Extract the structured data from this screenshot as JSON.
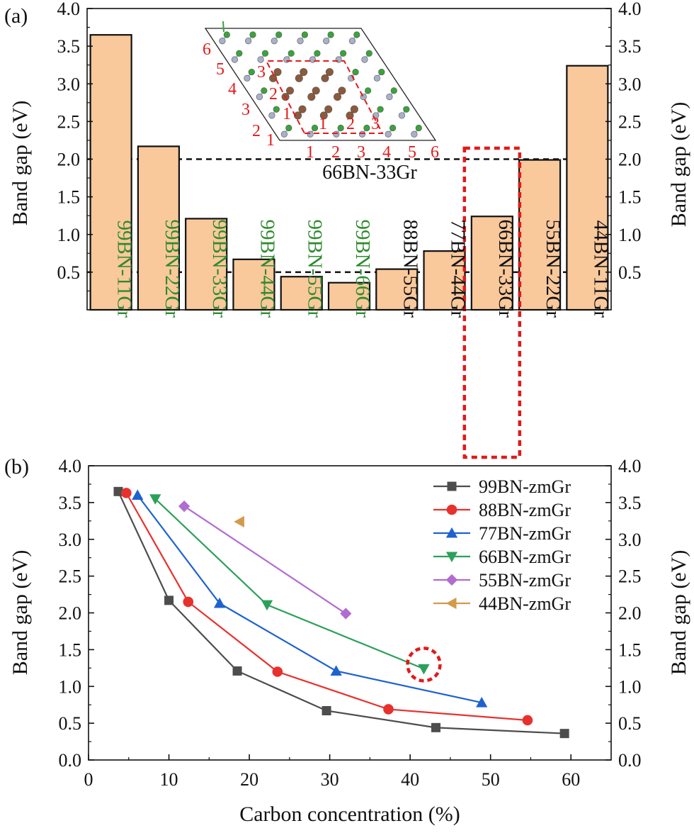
{
  "chart_data": [
    {
      "panel_label": "(a)",
      "type": "bar",
      "ylabel_left": "Band gap (eV)",
      "ylabel_right": "Band gap (eV)",
      "ylim": [
        0,
        4.0
      ],
      "yticks": [
        "0.5",
        "1.0",
        "1.5",
        "2.0",
        "2.5",
        "3.0",
        "3.5",
        "4.0"
      ],
      "categories": [
        "99BN-11Gr",
        "99BN-22Gr",
        "99BN-33Gr",
        "99BN-44Gr",
        "99BN-55Gr",
        "99BN-66Gr",
        "88BN-55Gr",
        "77BN-44Gr",
        "66BN-33Gr",
        "55BN-22Gr",
        "44BN-11Gr"
      ],
      "values": [
        3.65,
        2.17,
        1.21,
        0.67,
        0.44,
        0.36,
        0.54,
        0.78,
        1.24,
        1.99,
        3.24
      ],
      "category_colors": [
        "#2e8b2e",
        "#2e8b2e",
        "#2e8b2e",
        "#2e8b2e",
        "#2e8b2e",
        "#2e8b2e",
        "#111111",
        "#111111",
        "#111111",
        "#111111",
        "#111111"
      ],
      "bar_color": "#f9c89b",
      "reference_lines": [
        2.0,
        0.5
      ],
      "highlight_category": "66BN-33Gr",
      "highlight_color": "#e01b1b",
      "grid": false,
      "inset": {
        "label": "66BN-33Gr",
        "bottom_edge_labels": [
          "1",
          "2",
          "3",
          "4",
          "5",
          "6"
        ],
        "left_edge_labels": [
          "1",
          "2",
          "3",
          "4",
          "5",
          "6"
        ],
        "inner_bottom_labels": [
          "1",
          "2",
          "3"
        ],
        "inner_left_labels": [
          "1",
          "2",
          "3"
        ],
        "colors": {
          "carbon": "#8b5a3c",
          "boron": "#3ba33b",
          "nitrogen": "#a9b0c9",
          "labels": "#e01b1b"
        }
      }
    },
    {
      "panel_label": "(b)",
      "type": "line",
      "xlabel": "Carbon concentration (%)",
      "ylabel_left": "Band gap (eV)",
      "ylabel_right": "Band gap (eV)",
      "xlim": [
        0,
        65
      ],
      "ylim": [
        0,
        4.0
      ],
      "xticks": [
        "0",
        "10",
        "20",
        "30",
        "40",
        "50",
        "60"
      ],
      "yticks": [
        "0.0",
        "0.5",
        "1.0",
        "1.5",
        "2.0",
        "2.5",
        "3.0",
        "3.5",
        "4.0"
      ],
      "legend_position": "top-right",
      "grid": false,
      "series": [
        {
          "name": "99BN-zmGr",
          "color": "#4d4d4d",
          "marker": "square",
          "x": [
            3.7,
            10.0,
            18.5,
            29.6,
            43.2,
            59.2
          ],
          "y": [
            3.65,
            2.17,
            1.21,
            0.67,
            0.44,
            0.36
          ]
        },
        {
          "name": "88BN-zmGr",
          "color": "#e8312d",
          "marker": "circle",
          "x": [
            4.7,
            12.4,
            23.5,
            37.3,
            54.6
          ],
          "y": [
            3.63,
            2.15,
            1.2,
            0.69,
            0.54
          ]
        },
        {
          "name": "77BN-zmGr",
          "color": "#1e62d0",
          "marker": "triangle-up",
          "x": [
            6.1,
            16.3,
            30.8,
            48.9
          ],
          "y": [
            3.6,
            2.13,
            1.21,
            0.78
          ]
        },
        {
          "name": "66BN-zmGr",
          "color": "#2ca05a",
          "marker": "triangle-down",
          "x": [
            8.3,
            22.2,
            41.7
          ],
          "y": [
            3.55,
            2.11,
            1.24
          ]
        },
        {
          "name": "55BN-zmGr",
          "color": "#b06cd0",
          "marker": "diamond",
          "x": [
            11.9,
            32.0
          ],
          "y": [
            3.45,
            1.99
          ]
        },
        {
          "name": "44BN-zmGr",
          "color": "#d29a4a",
          "marker": "triangle-left",
          "x": [
            18.8
          ],
          "y": [
            3.24
          ]
        }
      ],
      "highlight_point": {
        "x": 41.7,
        "y": 1.24,
        "color": "#e01b1b"
      }
    }
  ]
}
